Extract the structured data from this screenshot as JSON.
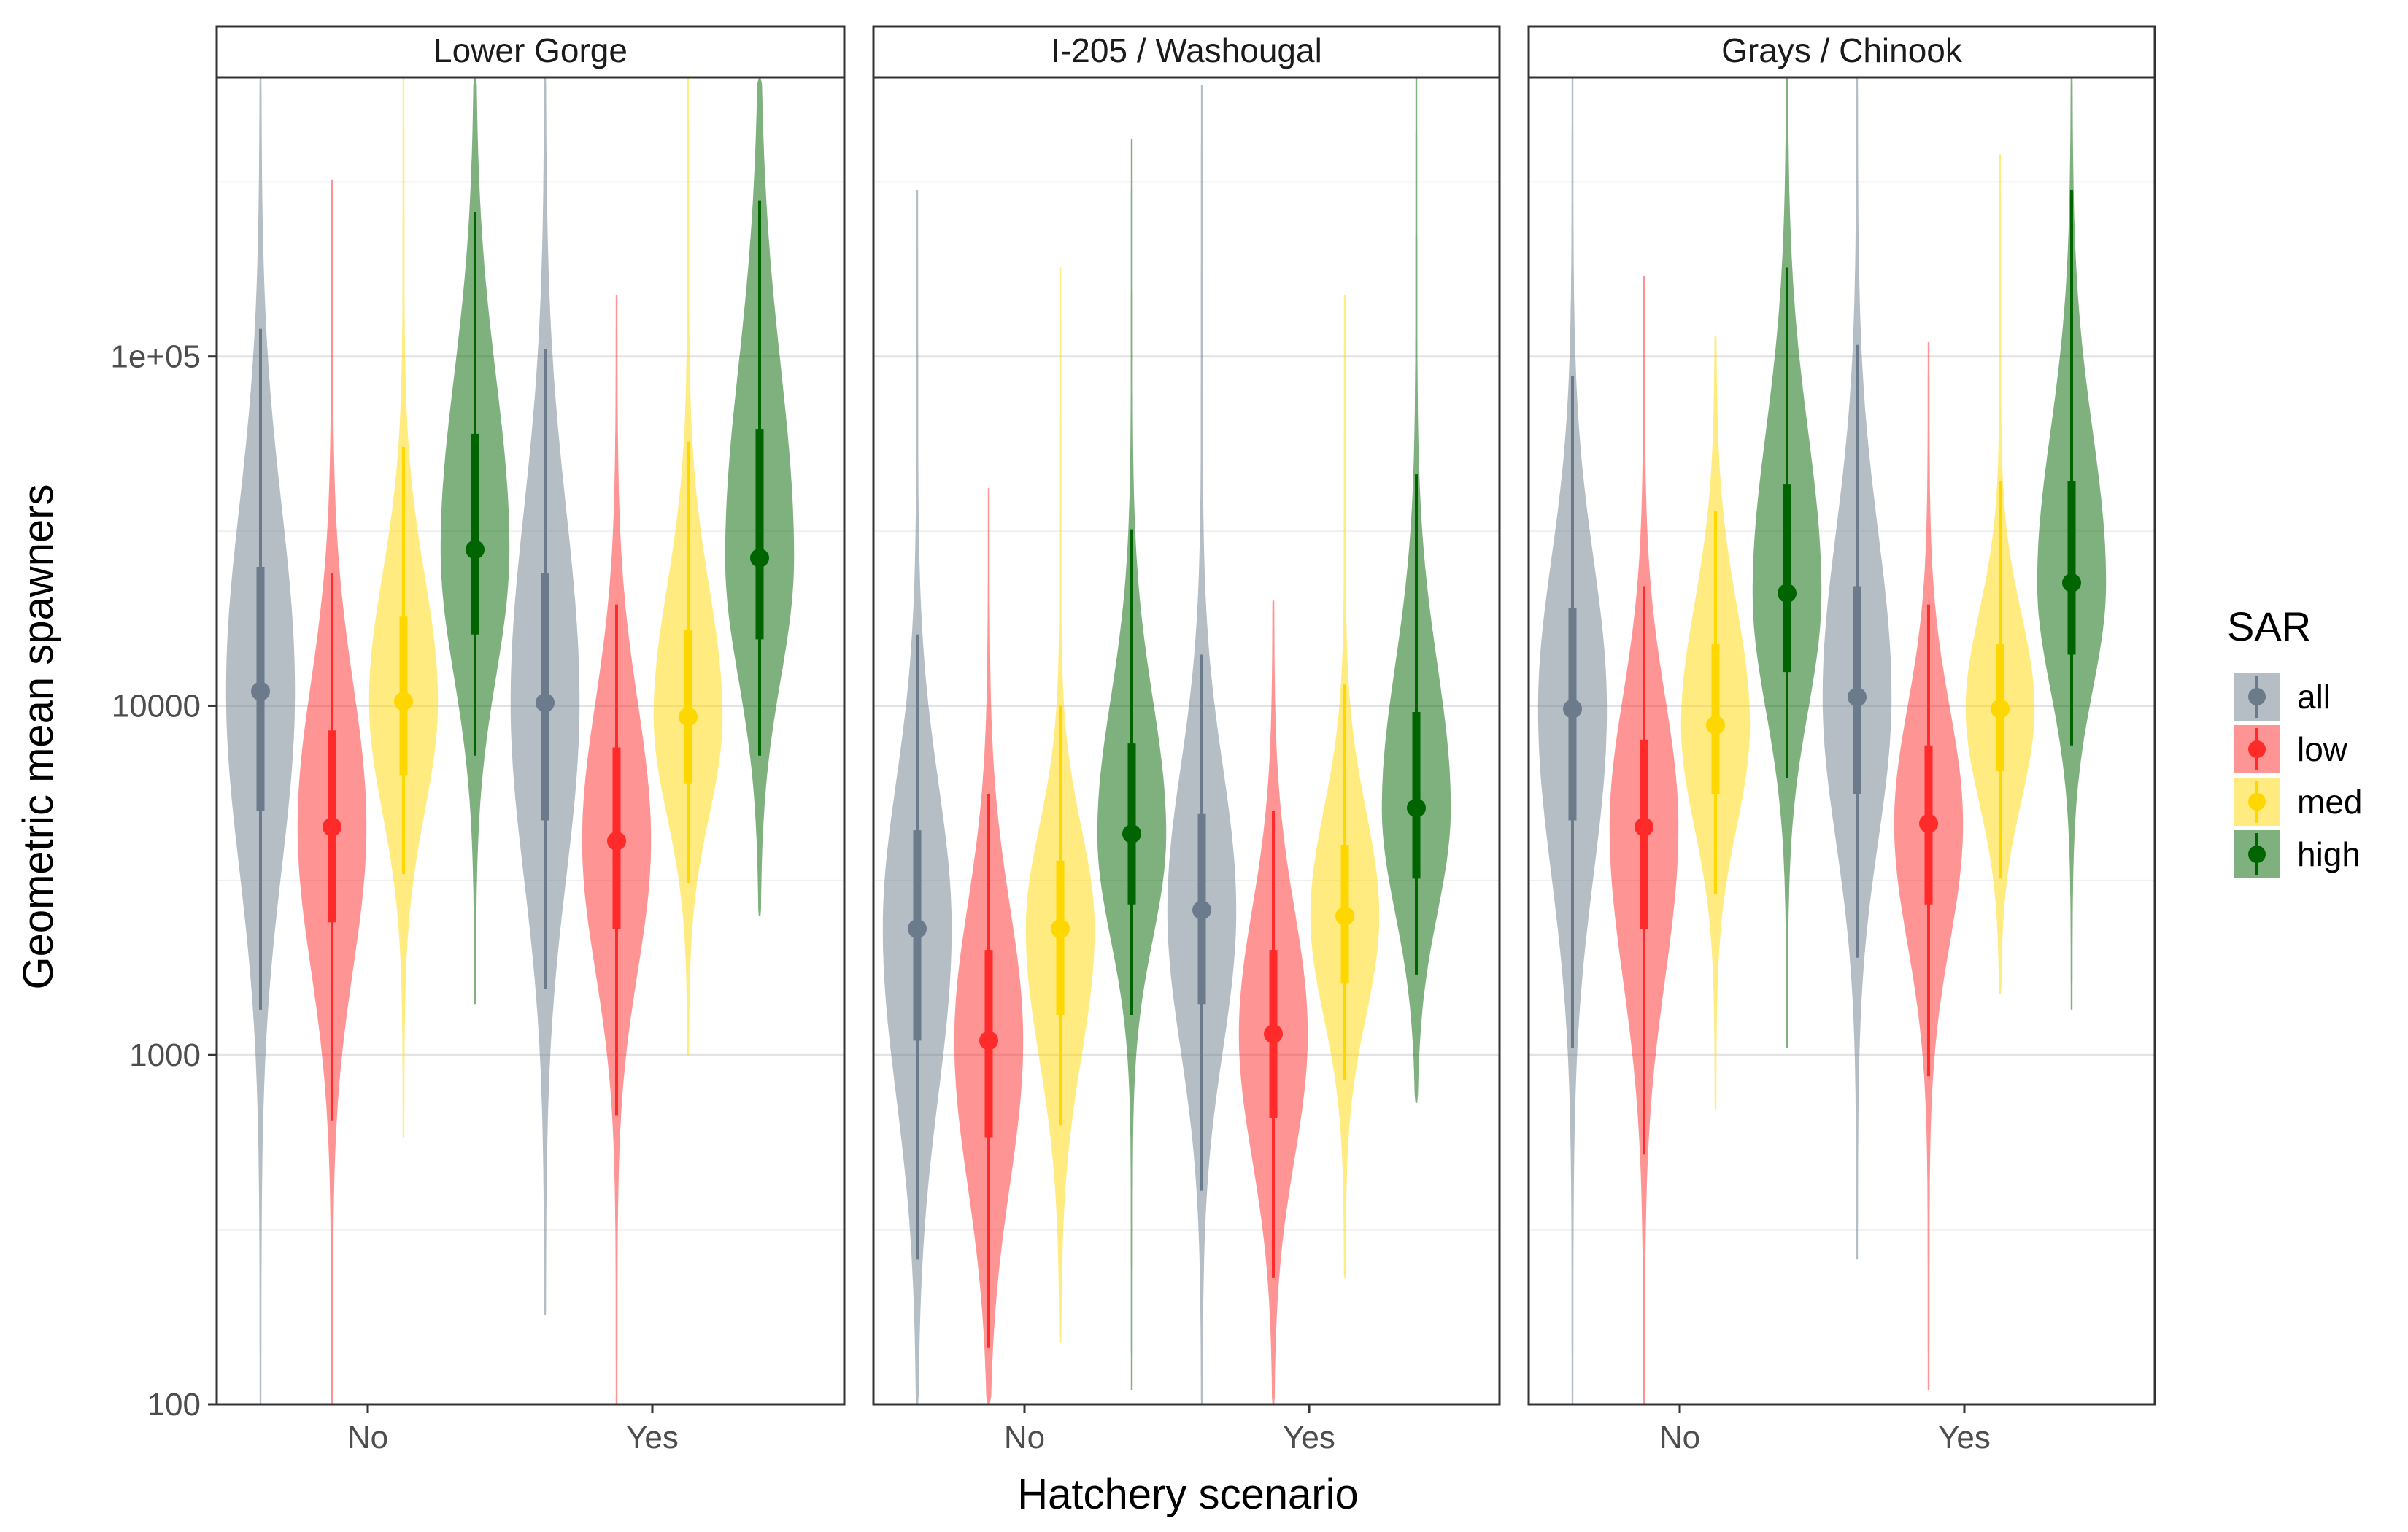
{
  "chart_data": {
    "type": "violin",
    "title": "",
    "xlabel": "Hatchery scenario",
    "ylabel": "Geometric mean spawners",
    "y_scale": "log10",
    "ylim": [
      100,
      630000
    ],
    "y_ticks": [
      100,
      1000,
      10000,
      100000
    ],
    "y_tick_labels": [
      "100",
      "1000",
      "10000",
      "1e+05"
    ],
    "categories": [
      "No",
      "Yes"
    ],
    "grid": true,
    "legend": {
      "title": "SAR",
      "position": "right",
      "entries": [
        {
          "key": "all",
          "label": "all",
          "color": "#6b7b8c"
        },
        {
          "key": "low",
          "label": "low",
          "color": "#ff2a2a"
        },
        {
          "key": "med",
          "label": "med",
          "color": "#ffd700"
        },
        {
          "key": "high",
          "label": "high",
          "color": "#006400"
        }
      ]
    },
    "panels": [
      {
        "name": "Lower Gorge",
        "groups": {
          "No": {
            "all": {
              "median": 11000,
              "q1": 5000,
              "q3": 25000,
              "p05": 1350,
              "p95": 120000,
              "min": 100,
              "max": 630000,
              "mode": 11000
            },
            "low": {
              "median": 4500,
              "q1": 2400,
              "q3": 8500,
              "p05": 650,
              "p95": 24000,
              "min": 100,
              "max": 320000,
              "mode": 4500
            },
            "med": {
              "median": 10300,
              "q1": 6300,
              "q3": 18000,
              "p05": 3300,
              "p95": 55000,
              "min": 580,
              "max": 630000,
              "mode": 10300
            },
            "high": {
              "median": 28000,
              "q1": 16000,
              "q3": 60000,
              "p05": 7200,
              "p95": 260000,
              "min": 1400,
              "max": 630000,
              "mode": 28000
            }
          },
          "Yes": {
            "all": {
              "median": 10200,
              "q1": 4700,
              "q3": 24000,
              "p05": 1550,
              "p95": 105000,
              "min": 180,
              "max": 630000,
              "mode": 10200
            },
            "low": {
              "median": 4100,
              "q1": 2300,
              "q3": 7600,
              "p05": 670,
              "p95": 19500,
              "min": 100,
              "max": 150000,
              "mode": 4100
            },
            "med": {
              "median": 9300,
              "q1": 6000,
              "q3": 16500,
              "p05": 3100,
              "p95": 57000,
              "min": 1000,
              "max": 630000,
              "mode": 9300
            },
            "high": {
              "median": 26500,
              "q1": 15500,
              "q3": 62000,
              "p05": 7200,
              "p95": 280000,
              "min": 2500,
              "max": 630000,
              "mode": 26500
            }
          }
        }
      },
      {
        "name": "I-205 / Washougal",
        "groups": {
          "No": {
            "all": {
              "median": 2300,
              "q1": 1100,
              "q3": 4400,
              "p05": 260,
              "p95": 16000,
              "min": 100,
              "max": 300000,
              "mode": 2300
            },
            "low": {
              "median": 1100,
              "q1": 580,
              "q3": 2000,
              "p05": 145,
              "p95": 5600,
              "min": 100,
              "max": 42000,
              "mode": 1100
            },
            "med": {
              "median": 2300,
              "q1": 1300,
              "q3": 3600,
              "p05": 630,
              "p95": 10000,
              "min": 150,
              "max": 180000,
              "mode": 2300
            },
            "high": {
              "median": 4300,
              "q1": 2700,
              "q3": 7800,
              "p05": 1300,
              "p95": 32000,
              "min": 110,
              "max": 420000,
              "mode": 4300
            }
          },
          "Yes": {
            "all": {
              "median": 2600,
              "q1": 1400,
              "q3": 4900,
              "p05": 410,
              "p95": 14000,
              "min": 100,
              "max": 600000,
              "mode": 2600
            },
            "low": {
              "median": 1150,
              "q1": 660,
              "q3": 2000,
              "p05": 230,
              "p95": 5000,
              "min": 100,
              "max": 20000,
              "mode": 1150
            },
            "med": {
              "median": 2500,
              "q1": 1600,
              "q3": 4000,
              "p05": 850,
              "p95": 11500,
              "min": 230,
              "max": 150000,
              "mode": 2500
            },
            "high": {
              "median": 5100,
              "q1": 3200,
              "q3": 9600,
              "p05": 1700,
              "p95": 46000,
              "min": 730,
              "max": 630000,
              "mode": 5100
            }
          }
        }
      },
      {
        "name": "Grays / Chinook",
        "groups": {
          "No": {
            "all": {
              "median": 9800,
              "q1": 4700,
              "q3": 19000,
              "p05": 1050,
              "p95": 88000,
              "min": 100,
              "max": 630000,
              "mode": 9800
            },
            "low": {
              "median": 4500,
              "q1": 2300,
              "q3": 8000,
              "p05": 520,
              "p95": 22000,
              "min": 100,
              "max": 170000,
              "mode": 4500
            },
            "med": {
              "median": 8800,
              "q1": 5600,
              "q3": 15000,
              "p05": 2900,
              "p95": 36000,
              "min": 700,
              "max": 115000,
              "mode": 8800
            },
            "high": {
              "median": 21000,
              "q1": 12500,
              "q3": 43000,
              "p05": 6200,
              "p95": 180000,
              "min": 1050,
              "max": 630000,
              "mode": 21000
            }
          },
          "Yes": {
            "all": {
              "median": 10600,
              "q1": 5600,
              "q3": 22000,
              "p05": 1900,
              "p95": 108000,
              "min": 260,
              "max": 630000,
              "mode": 10600
            },
            "low": {
              "median": 4600,
              "q1": 2700,
              "q3": 7700,
              "p05": 870,
              "p95": 19500,
              "min": 110,
              "max": 110000,
              "mode": 4600
            },
            "med": {
              "median": 9800,
              "q1": 6500,
              "q3": 15000,
              "p05": 3200,
              "p95": 44000,
              "min": 1500,
              "max": 380000,
              "mode": 9800
            },
            "high": {
              "median": 22500,
              "q1": 14000,
              "q3": 44000,
              "p05": 7700,
              "p95": 300000,
              "min": 1350,
              "max": 630000,
              "mode": 22500
            }
          }
        }
      }
    ]
  }
}
